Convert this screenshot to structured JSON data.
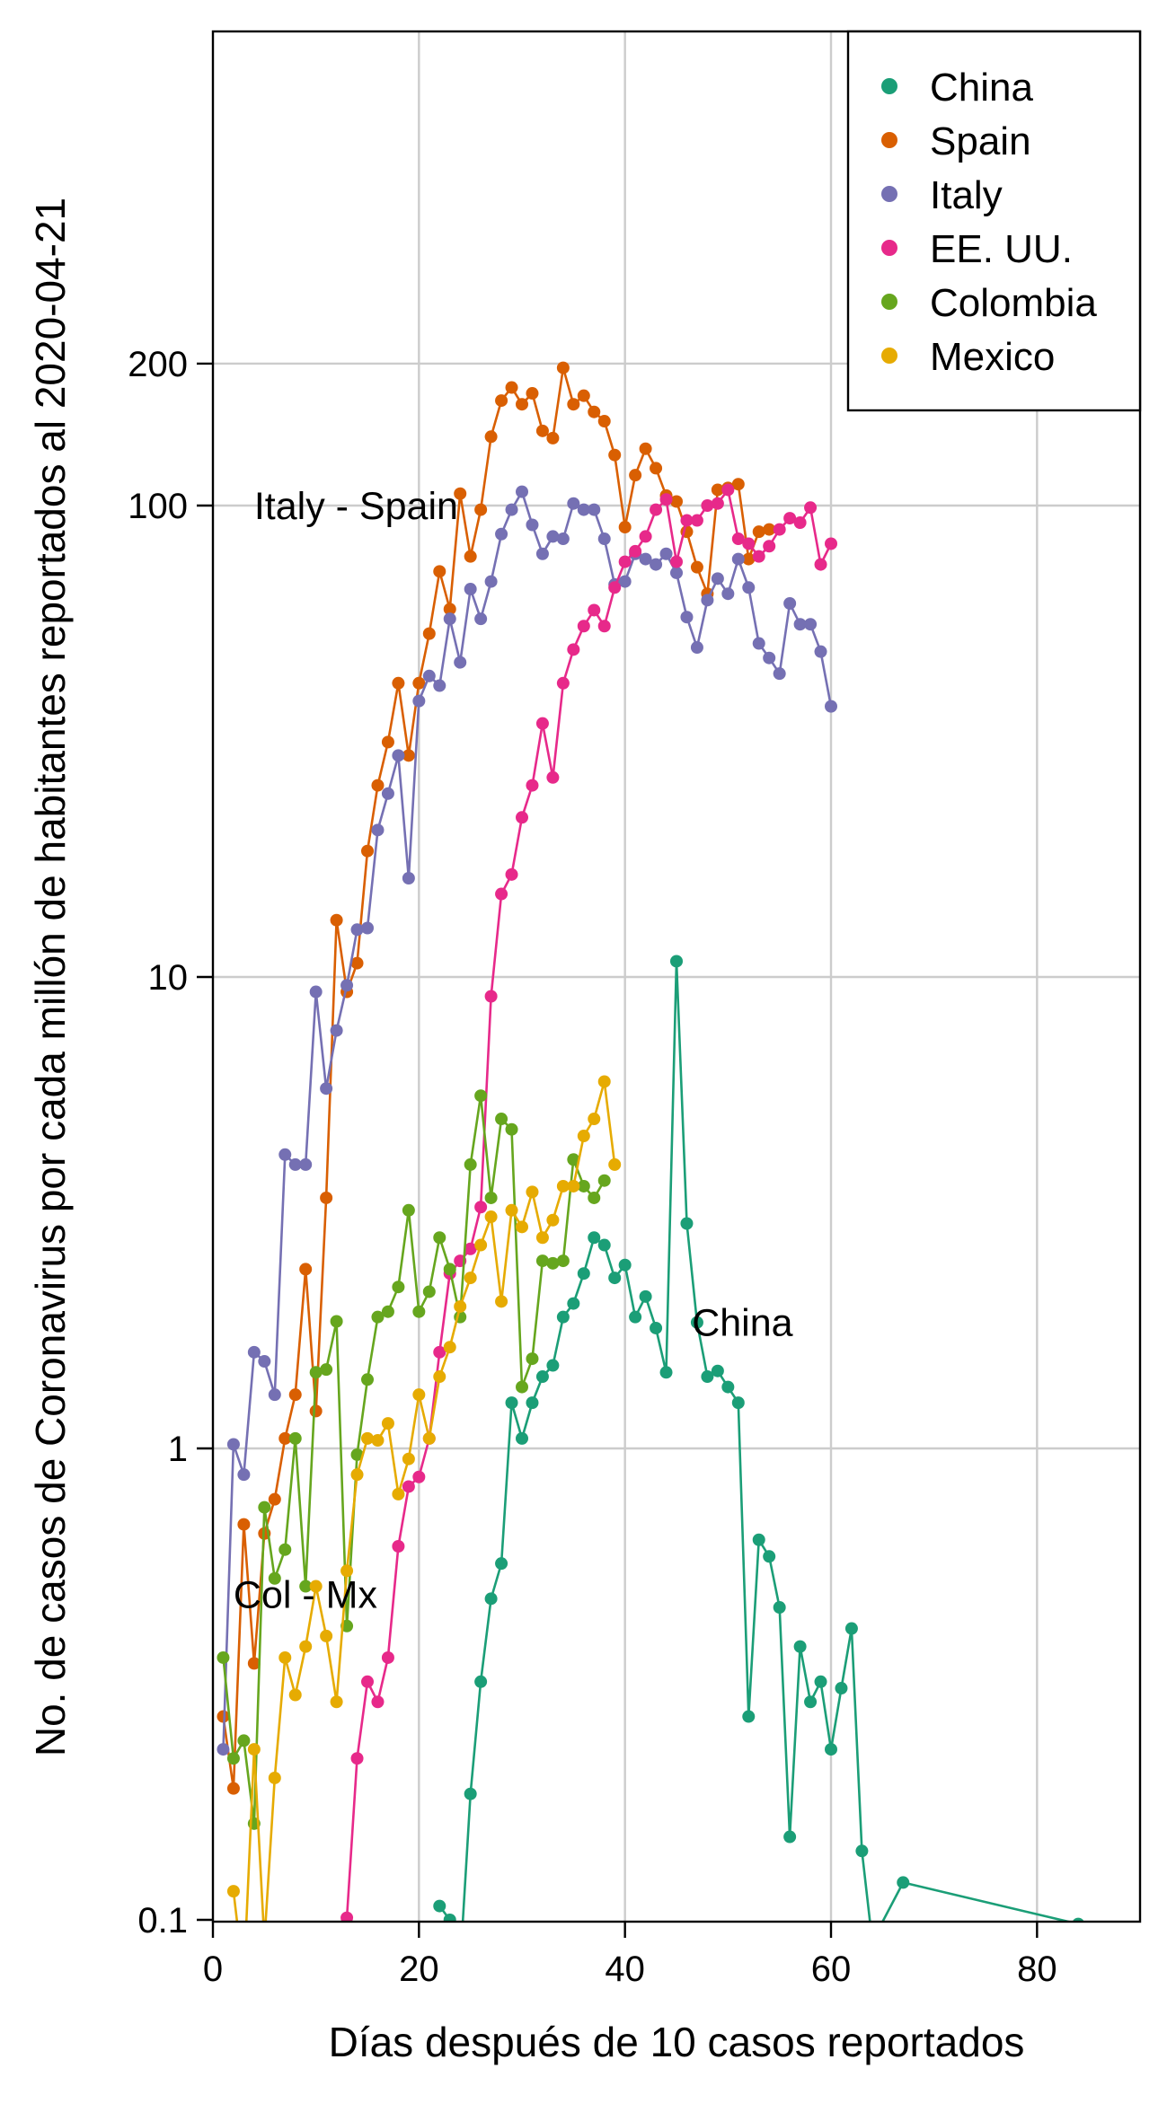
{
  "chart_data": {
    "type": "line",
    "title": "",
    "xlabel": "Días después de 10 casos reportados",
    "ylabel": "No. de casos de Coronavirus por cada millón de habitantes reportados al 2020-04-21",
    "xlim": [
      0,
      90
    ],
    "ylim": [
      0.1,
      1000
    ],
    "y_scale": "log",
    "x_ticks": [
      0,
      20,
      40,
      60,
      80
    ],
    "x_tick_labels": [
      "0",
      "20",
      "40",
      "60",
      "80"
    ],
    "y_ticks": [
      0.1,
      1,
      10,
      100,
      200
    ],
    "y_tick_labels": [
      "0.1",
      "1",
      "10",
      "100",
      "200"
    ],
    "grid": true,
    "legend_position": "top-right",
    "annotations": [
      {
        "text": "Italy - Spain",
        "x": 4,
        "y": 100
      },
      {
        "text": "China",
        "x": 46.5,
        "y": 1.85
      },
      {
        "text": "Col - Mx",
        "x": 2,
        "y": 0.49
      }
    ],
    "series": [
      {
        "name": "China",
        "color": "#1b9e77",
        "x": [
          22,
          23,
          24,
          25,
          26,
          27,
          28,
          29,
          30,
          31,
          32,
          33,
          34,
          35,
          36,
          37,
          38,
          39,
          40,
          41,
          42,
          43,
          44,
          45,
          46,
          47,
          48,
          49,
          50,
          51,
          52,
          53,
          54,
          55,
          56,
          57,
          58,
          59,
          60,
          61,
          62,
          63,
          64,
          67,
          84
        ],
        "y": [
          0.107,
          0.1,
          0.08,
          0.185,
          0.32,
          0.48,
          0.57,
          1.25,
          1.05,
          1.25,
          1.42,
          1.5,
          1.9,
          2.03,
          2.35,
          2.8,
          2.7,
          2.3,
          2.45,
          1.9,
          2.1,
          1.8,
          1.45,
          10.8,
          3.0,
          1.85,
          1.42,
          1.46,
          1.35,
          1.25,
          0.27,
          0.64,
          0.59,
          0.46,
          0.15,
          0.38,
          0.29,
          0.32,
          0.23,
          0.31,
          0.415,
          0.14,
          0.09,
          0.12,
          0.098
        ]
      },
      {
        "name": "Spain",
        "color": "#d95f02",
        "x": [
          1,
          2,
          3,
          4,
          5,
          6,
          7,
          8,
          9,
          10,
          11,
          12,
          13,
          14,
          15,
          16,
          17,
          18,
          19,
          20,
          21,
          22,
          23,
          24,
          25,
          26,
          27,
          28,
          29,
          30,
          31,
          32,
          33,
          34,
          35,
          36,
          37,
          38,
          39,
          40,
          41,
          42,
          43,
          44,
          45,
          46,
          47,
          48,
          49,
          50,
          51,
          52,
          53,
          54
        ],
        "y": [
          0.27,
          0.19,
          0.69,
          0.35,
          0.66,
          0.78,
          1.05,
          1.3,
          2.4,
          1.2,
          3.4,
          13.2,
          9.3,
          10.7,
          18.5,
          25.5,
          31.5,
          42,
          29.5,
          42,
          53.5,
          72.5,
          60.3,
          106,
          78,
          98,
          140,
          167,
          178,
          164,
          173,
          144,
          139,
          196,
          164,
          171,
          158,
          151,
          128,
          90,
          116,
          132,
          120,
          105,
          102,
          88,
          74,
          65,
          108,
          109,
          111,
          77,
          88,
          89
        ]
      },
      {
        "name": "Italy",
        "color": "#7570b3",
        "x": [
          1,
          2,
          3,
          4,
          5,
          6,
          7,
          8,
          9,
          10,
          11,
          12,
          13,
          14,
          15,
          16,
          17,
          18,
          19,
          20,
          21,
          22,
          23,
          24,
          25,
          26,
          27,
          28,
          29,
          30,
          31,
          32,
          33,
          34,
          35,
          36,
          37,
          38,
          39,
          40,
          41,
          42,
          43,
          44,
          45,
          46,
          47,
          48,
          49,
          50,
          51,
          52,
          53,
          54,
          55,
          56,
          57,
          58,
          59,
          60
        ],
        "y": [
          0.23,
          1.02,
          0.88,
          1.6,
          1.53,
          1.3,
          4.2,
          4.0,
          4.0,
          9.3,
          5.8,
          7.7,
          9.6,
          12.6,
          12.7,
          20.5,
          24.5,
          29.5,
          16.2,
          38.5,
          43.5,
          41.5,
          57.5,
          46.5,
          66.5,
          57.5,
          69,
          87,
          98,
          107,
          91,
          79,
          86,
          85,
          101,
          98,
          98,
          85,
          68,
          69,
          79,
          77,
          75,
          79,
          72,
          58,
          50,
          63,
          70,
          65,
          77,
          67,
          51,
          47.5,
          44,
          62,
          56,
          56,
          49,
          37.5
        ]
      },
      {
        "name": "EE. UU.",
        "color": "#e7298a",
        "x": [
          13,
          14,
          15,
          16,
          17,
          18,
          19,
          20,
          21,
          22,
          23,
          24,
          25,
          26,
          27,
          28,
          29,
          30,
          31,
          32,
          33,
          34,
          35,
          36,
          37,
          38,
          39,
          40,
          41,
          42,
          43,
          44,
          45,
          46,
          47,
          48,
          49,
          50,
          51,
          52,
          53,
          54,
          55,
          56,
          57,
          58,
          59,
          60
        ],
        "y": [
          0.101,
          0.22,
          0.32,
          0.29,
          0.36,
          0.62,
          0.83,
          0.87,
          1.05,
          1.6,
          2.35,
          2.5,
          2.65,
          3.25,
          9.1,
          15.0,
          16.5,
          21.8,
          25.5,
          34.5,
          26.5,
          42,
          49.5,
          55.5,
          60,
          55.5,
          67,
          76,
          80,
          86,
          98,
          103,
          76,
          93,
          93,
          100,
          101,
          108,
          85,
          83,
          78,
          82,
          89,
          94,
          92,
          99,
          75,
          83
        ]
      },
      {
        "name": "Colombia",
        "color": "#66a61e",
        "x": [
          1,
          2,
          3,
          4,
          5,
          6,
          7,
          8,
          9,
          10,
          11,
          12,
          13,
          14,
          15,
          16,
          17,
          18,
          19,
          20,
          21,
          22,
          23,
          24,
          25,
          26,
          27,
          28,
          29,
          30,
          31,
          32,
          33,
          34,
          35,
          36,
          37,
          38
        ],
        "y": [
          0.36,
          0.22,
          0.24,
          0.16,
          0.75,
          0.53,
          0.61,
          1.05,
          0.51,
          1.45,
          1.47,
          1.86,
          0.42,
          0.97,
          1.4,
          1.9,
          1.95,
          2.2,
          3.2,
          1.95,
          2.15,
          2.8,
          2.4,
          1.9,
          4.0,
          5.6,
          3.4,
          5.0,
          4.75,
          1.35,
          1.55,
          2.5,
          2.47,
          2.5,
          4.1,
          3.6,
          3.4,
          3.7
        ]
      },
      {
        "name": "Mexico",
        "color": "#e6ab02",
        "x": [
          2,
          3,
          4,
          5,
          6,
          7,
          8,
          9,
          10,
          11,
          12,
          13,
          14,
          15,
          16,
          17,
          18,
          19,
          20,
          21,
          22,
          23,
          24,
          25,
          26,
          27,
          28,
          29,
          30,
          31,
          32,
          33,
          34,
          35,
          36,
          37,
          38,
          39
        ],
        "y": [
          0.115,
          0.075,
          0.23,
          0.09,
          0.2,
          0.36,
          0.3,
          0.38,
          0.51,
          0.4,
          0.29,
          0.55,
          0.88,
          1.05,
          1.04,
          1.13,
          0.8,
          0.95,
          1.3,
          1.05,
          1.42,
          1.64,
          2.0,
          2.3,
          2.7,
          3.1,
          2.05,
          3.2,
          2.95,
          3.5,
          2.8,
          3.05,
          3.6,
          3.6,
          4.6,
          5.0,
          6.0,
          4.0
        ]
      }
    ]
  }
}
